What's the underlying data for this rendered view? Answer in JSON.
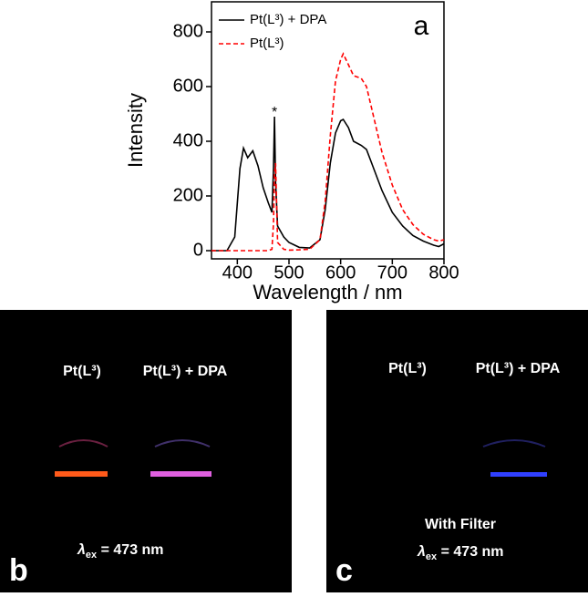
{
  "chart_data": {
    "type": "line",
    "xlabel": "Wavelength / nm",
    "ylabel": "Intensity",
    "annotations": [
      "a",
      "*"
    ],
    "x": [
      350,
      380,
      395,
      405,
      412,
      420,
      430,
      440,
      450,
      460,
      467,
      470,
      472,
      474,
      478,
      490,
      500,
      520,
      540,
      560,
      570,
      580,
      590,
      600,
      605,
      615,
      625,
      640,
      650,
      660,
      680,
      700,
      720,
      740,
      760,
      780,
      790,
      800
    ],
    "series": [
      {
        "name": "Pt(L³) + DPA",
        "color": "#000000",
        "dash": "solid",
        "values": [
          0,
          0,
          50,
          300,
          375,
          340,
          365,
          310,
          230,
          175,
          140,
          300,
          490,
          250,
          90,
          50,
          30,
          12,
          10,
          40,
          150,
          320,
          430,
          475,
          480,
          450,
          400,
          385,
          370,
          320,
          220,
          140,
          90,
          55,
          35,
          20,
          15,
          25
        ]
      },
      {
        "name": "Pt(L³)",
        "color": "#ff0000",
        "dash": "dashed",
        "values": [
          0,
          0,
          0,
          0,
          0,
          0,
          0,
          0,
          0,
          0,
          5,
          100,
          280,
          320,
          30,
          5,
          2,
          3,
          5,
          40,
          180,
          420,
          620,
          700,
          720,
          680,
          640,
          630,
          600,
          520,
          360,
          240,
          150,
          95,
          60,
          40,
          35,
          40
        ]
      }
    ],
    "xlim": [
      350,
      800
    ],
    "xticks": [
      400,
      500,
      600,
      700,
      800
    ],
    "ylim": [
      -30,
      910
    ],
    "yticks": [
      0,
      200,
      400,
      600,
      800
    ]
  },
  "panels": [
    {
      "label": "b",
      "samples": [
        "Pt(L³)",
        "Pt(L³) + DPA"
      ],
      "excitation": {
        "symbol": "λ",
        "subscript": "ex",
        "rest": " = 473 nm"
      }
    },
    {
      "label": "c",
      "samples": [
        "Pt(L³)",
        "Pt(L³) + DPA"
      ],
      "note": "With Filter",
      "excitation": {
        "symbol": "λ",
        "subscript": "ex",
        "rest": " = 473 nm"
      }
    }
  ]
}
